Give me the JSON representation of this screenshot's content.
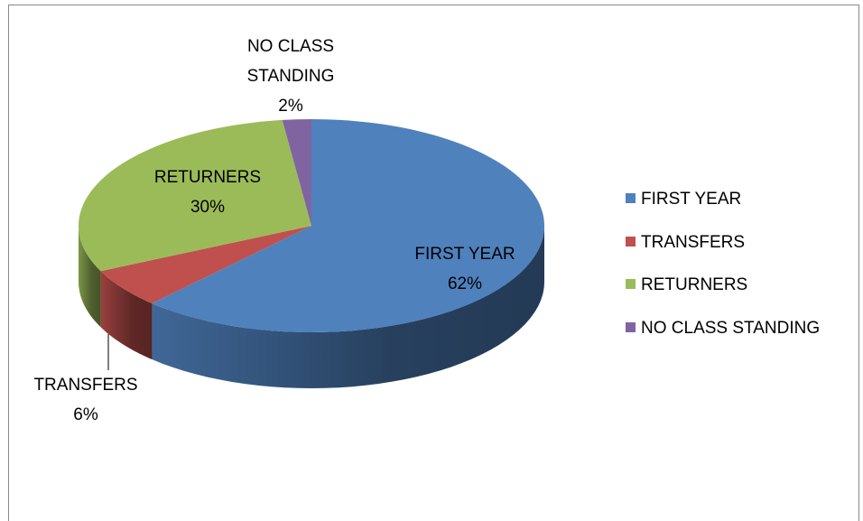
{
  "chart_data": {
    "type": "pie",
    "categories": [
      "FIRST YEAR",
      "TRANSFERS",
      "RETURNERS",
      "NO CLASS STANDING"
    ],
    "values": [
      62,
      6,
      30,
      2
    ],
    "value_labels": [
      "62%",
      "6%",
      "30%",
      "2%"
    ],
    "colors": [
      "#4f81bd",
      "#c0504d",
      "#9bbb59",
      "#8064a2"
    ],
    "legend": "right"
  }
}
